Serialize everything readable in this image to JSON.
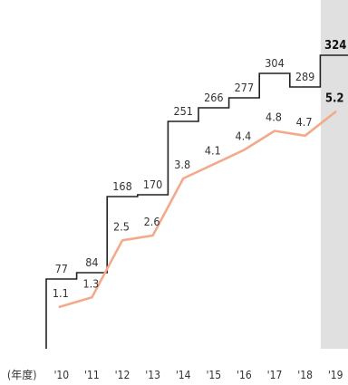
{
  "chart_data": {
    "type": "line",
    "x_unit_label": "(年度)",
    "categories": [
      "'10",
      "'11",
      "'12",
      "'13",
      "'14",
      "'15",
      "'16",
      "'17",
      "'18",
      "'19"
    ],
    "highlight_category": "'19",
    "series": [
      {
        "style": "step",
        "values": [
          77,
          84,
          168,
          170,
          251,
          266,
          277,
          304,
          289,
          324
        ],
        "labels": [
          "77",
          "84",
          "168",
          "170",
          "251",
          "266",
          "277",
          "304",
          "289",
          "324"
        ],
        "color": "#222222"
      },
      {
        "style": "line",
        "values": [
          1.1,
          1.3,
          2.5,
          2.6,
          3.8,
          4.1,
          4.4,
          4.8,
          4.7,
          5.2
        ],
        "labels": [
          "1.1",
          "1.3",
          "2.5",
          "2.6",
          "3.8",
          "4.1",
          "4.4",
          "4.8",
          "4.7",
          "5.2"
        ],
        "color": "#f4a98a"
      }
    ],
    "highlight_color": "#e0e0e0",
    "grid": false,
    "legend": "none"
  }
}
